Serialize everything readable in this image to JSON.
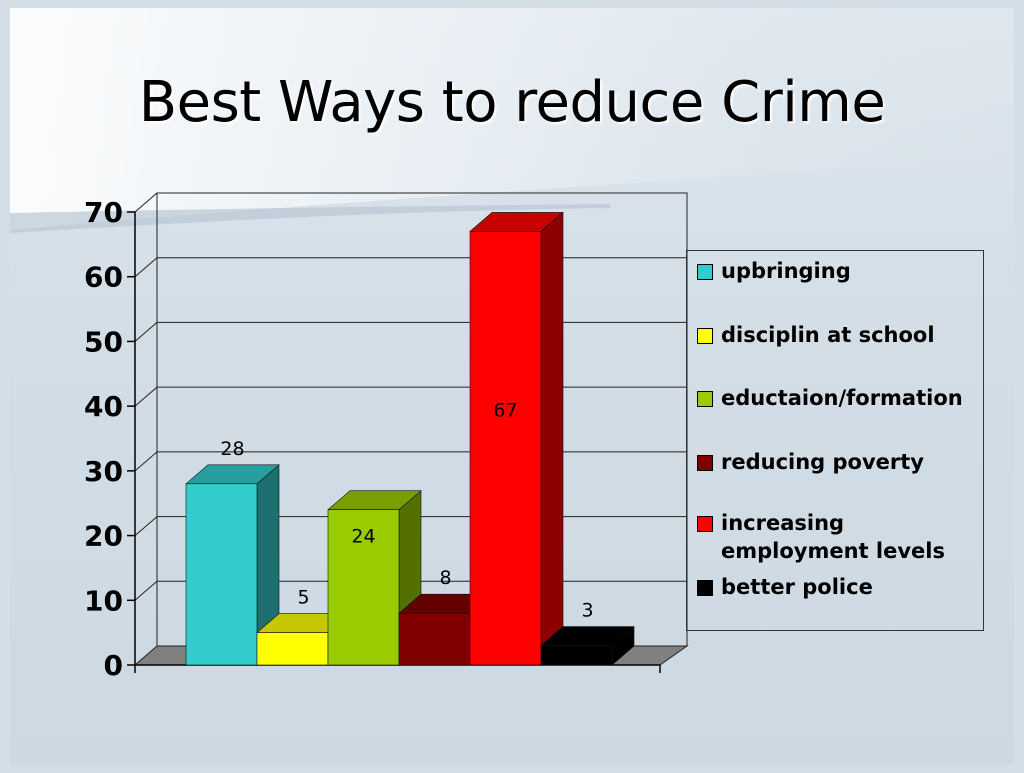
{
  "slide": {
    "title": "Best Ways to reduce Crime"
  },
  "chart_data": {
    "type": "bar",
    "title": "Best Ways to reduce Crime",
    "categories": [
      "upbringing",
      "disciplin at school",
      "eductaion/formation",
      "reducing poverty",
      "increasing employment levels",
      "better police"
    ],
    "values": [
      28,
      5,
      24,
      8,
      67,
      3
    ],
    "data_labels": [
      "28",
      "5",
      "24",
      "8",
      "67",
      "3"
    ],
    "colors": [
      "#33CCCC",
      "#FFFF00",
      "#99CC00",
      "#800000",
      "#FF0000",
      "#000000"
    ],
    "ylim": [
      0,
      70
    ],
    "yticks": [
      0,
      10,
      20,
      30,
      40,
      50,
      60,
      70
    ],
    "grid": true,
    "legend_position": "right",
    "legend": [
      {
        "label": "upbringing",
        "color": "#33CCCC"
      },
      {
        "label": "disciplin at school",
        "color": "#FFFF00"
      },
      {
        "label": "eductaion/formation",
        "color": "#99CC00"
      },
      {
        "label": "reducing poverty",
        "color": "#800000"
      },
      {
        "label": "increasing\nemployment levels",
        "color": "#FF0000"
      },
      {
        "label": "better police",
        "color": "#000000"
      }
    ]
  }
}
